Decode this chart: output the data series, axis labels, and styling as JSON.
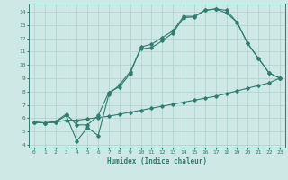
{
  "title": "",
  "xlabel": "Humidex (Indice chaleur)",
  "bg_color": "#cde8e5",
  "line_color": "#2e7d6e",
  "grid_color": "#aed0cc",
  "xlim": [
    -0.5,
    23.5
  ],
  "ylim": [
    3.8,
    14.6
  ],
  "yticks": [
    4,
    5,
    6,
    7,
    8,
    9,
    10,
    11,
    12,
    13,
    14
  ],
  "xticks": [
    0,
    1,
    2,
    3,
    4,
    5,
    6,
    7,
    8,
    9,
    10,
    11,
    12,
    13,
    14,
    15,
    16,
    17,
    18,
    19,
    20,
    21,
    22,
    23
  ],
  "line1_x": [
    0,
    1,
    2,
    3,
    4,
    5,
    6,
    7,
    8,
    9,
    10,
    11,
    12,
    13,
    14,
    15,
    16,
    17,
    18,
    19,
    20,
    21,
    22,
    23
  ],
  "line1_y": [
    5.7,
    5.65,
    5.7,
    5.85,
    5.85,
    5.95,
    6.05,
    6.15,
    6.3,
    6.45,
    6.6,
    6.75,
    6.9,
    7.05,
    7.2,
    7.35,
    7.5,
    7.65,
    7.85,
    8.05,
    8.25,
    8.45,
    8.65,
    9.0
  ],
  "line2_x": [
    0,
    1,
    2,
    3,
    4,
    5,
    6,
    7,
    8,
    9,
    10,
    11,
    12,
    13,
    14,
    15,
    16,
    17,
    18,
    19,
    20,
    21,
    22,
    23
  ],
  "line2_y": [
    5.7,
    5.65,
    5.7,
    6.2,
    4.3,
    5.3,
    4.7,
    7.8,
    8.5,
    9.5,
    11.2,
    11.3,
    11.8,
    12.4,
    13.55,
    13.6,
    14.1,
    14.2,
    13.9,
    13.2,
    11.6,
    10.5,
    9.4,
    9.0
  ],
  "line3_x": [
    0,
    1,
    2,
    3,
    4,
    5,
    6,
    7,
    8,
    9,
    10,
    11,
    12,
    13,
    14,
    15,
    16,
    17,
    18,
    19,
    20,
    21,
    22,
    23
  ],
  "line3_y": [
    5.7,
    5.65,
    5.75,
    6.3,
    5.5,
    5.5,
    6.2,
    7.95,
    8.35,
    9.35,
    11.35,
    11.55,
    12.05,
    12.55,
    13.65,
    13.65,
    14.1,
    14.2,
    14.1,
    13.2,
    11.6,
    10.5,
    9.4,
    9.0
  ]
}
